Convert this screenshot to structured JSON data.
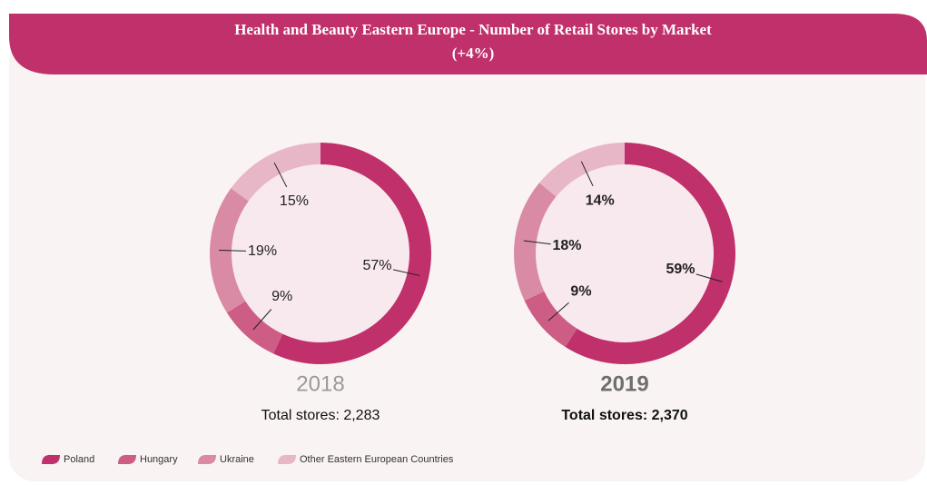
{
  "header": {
    "title": "Health and Beauty Eastern Europe - Number of Retail Stores by Market",
    "subtitle": "(+4%)"
  },
  "chart_data": [
    {
      "type": "pie",
      "title": "2018",
      "subtitle": "Total stores: 2,283",
      "categories": [
        "Poland",
        "Hungary",
        "Ukraine",
        "Other Eastern European Countries"
      ],
      "values": [
        57,
        9,
        19,
        15
      ],
      "value_labels": [
        "57%",
        "9%",
        "19%",
        "15%"
      ],
      "colors": [
        "#c0306a",
        "#cd5d85",
        "#d98aa4",
        "#e8b7c7"
      ]
    },
    {
      "type": "pie",
      "title": "2019",
      "subtitle": "Total stores: 2,370",
      "categories": [
        "Poland",
        "Hungary",
        "Ukraine",
        "Other Eastern European Countries"
      ],
      "values": [
        59,
        9,
        18,
        14
      ],
      "value_labels": [
        "59%",
        "9%",
        "18%",
        "14%"
      ],
      "colors": [
        "#c0306a",
        "#cd5d85",
        "#d98aa4",
        "#e8b7c7"
      ]
    }
  ]
}
